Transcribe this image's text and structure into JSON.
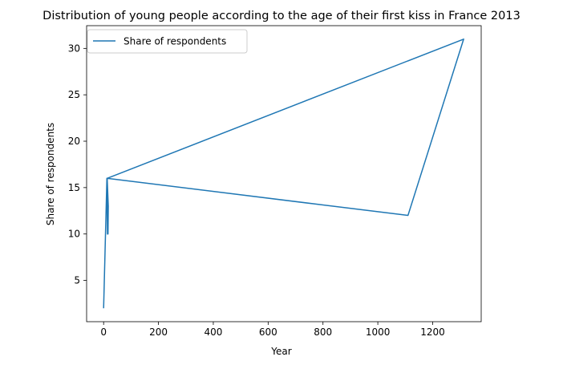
{
  "chart_data": {
    "type": "line",
    "title": "Distribution of young people according to the age of their first kiss in France 2013",
    "xlabel": "Year",
    "ylabel": "Share of respondents",
    "xlim": [
      -62,
      1377
    ],
    "ylim": [
      0.55,
      32.45
    ],
    "xticks": [
      0,
      200,
      400,
      600,
      800,
      1000,
      1200
    ],
    "yticks": [
      5,
      10,
      15,
      20,
      25,
      30
    ],
    "grid": false,
    "legend_position": "upper-left",
    "series": [
      {
        "name": "Share of respondents",
        "color": "#1f77b4",
        "x": [
          0,
          12,
          14,
          15,
          16,
          17,
          13,
          12,
          1110,
          1313,
          13
        ],
        "y": [
          2,
          16,
          10,
          13,
          10,
          13,
          16,
          16,
          12,
          31,
          16
        ]
      }
    ]
  }
}
